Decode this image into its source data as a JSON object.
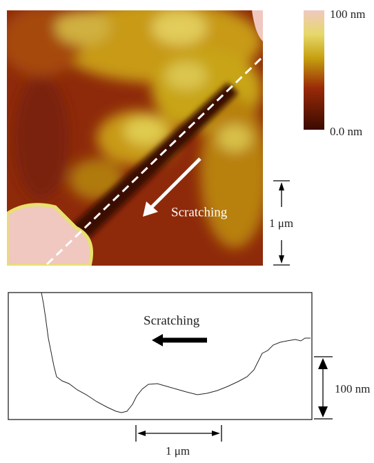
{
  "image": {
    "colorbar": {
      "max_label": "100 nm",
      "min_label": "0.0 nm"
    },
    "annotation": "Scratching",
    "scale_bar": "1 μm"
  },
  "profile": {
    "annotation": "Scratching",
    "height_bar": "100 nm",
    "scale_bar": "1 μm"
  }
}
